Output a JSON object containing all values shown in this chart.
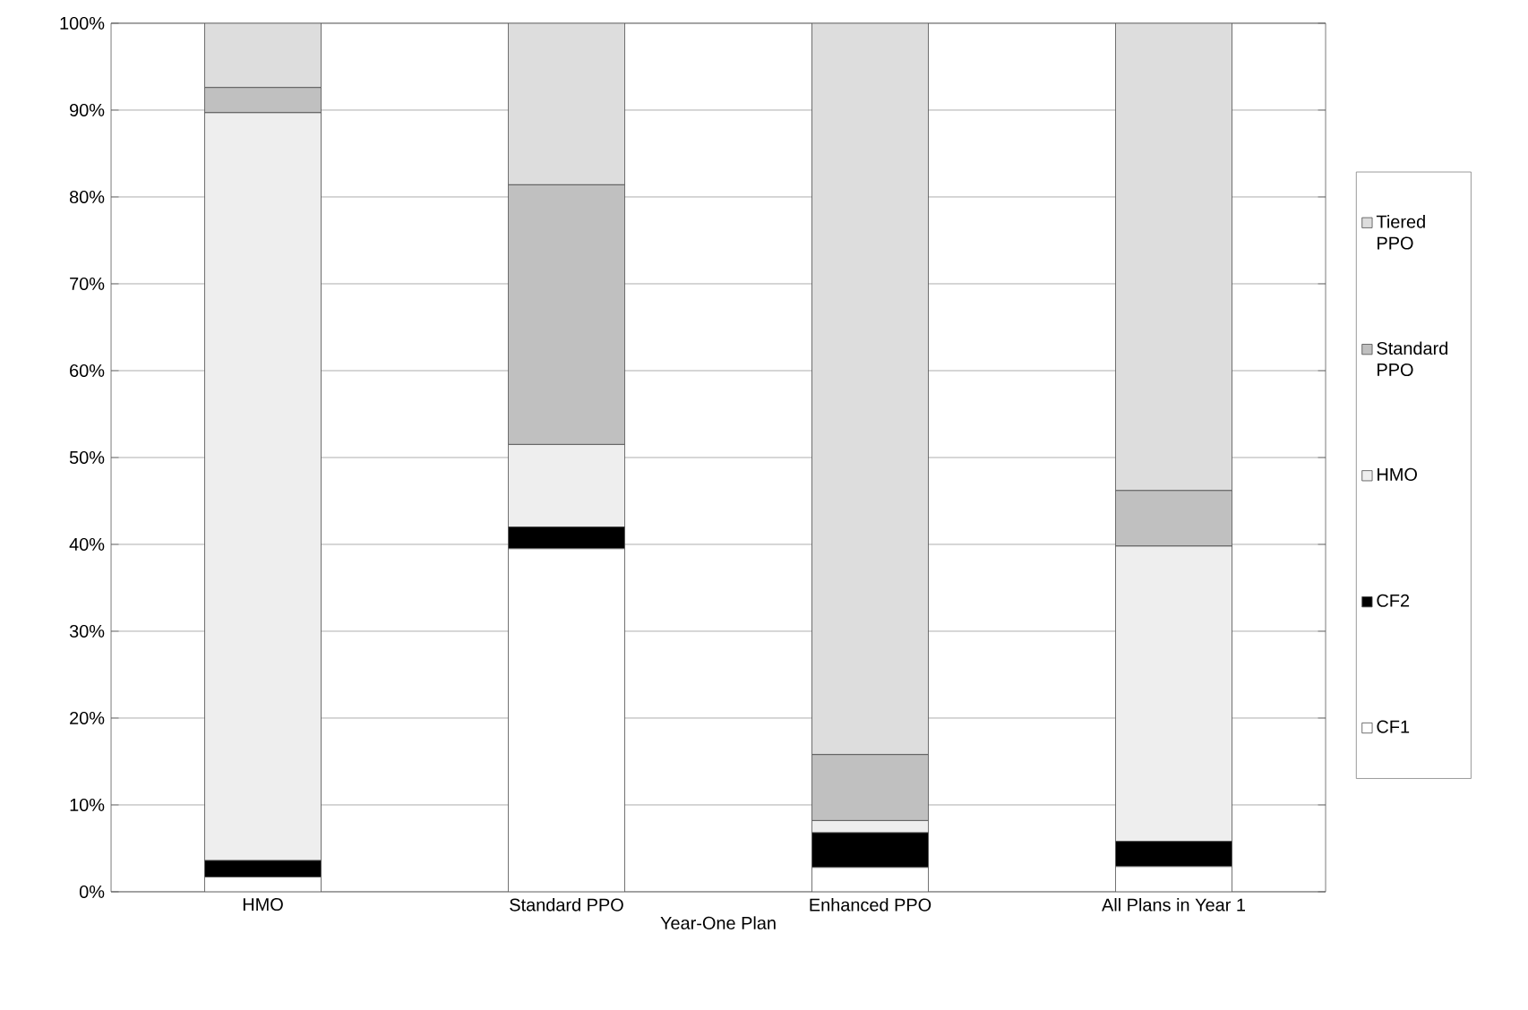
{
  "chart_data": {
    "type": "bar",
    "stacked": true,
    "xlabel": "Year-One Plan",
    "categories": [
      "HMO",
      "Standard PPO",
      "Enhanced PPO",
      "All Plans in Year 1"
    ],
    "series": [
      {
        "name": "CF1",
        "color": "#ffffff",
        "values": [
          1.7,
          39.5,
          2.8,
          2.9
        ]
      },
      {
        "name": "CF2",
        "color": "#000000",
        "values": [
          1.9,
          2.5,
          4.0,
          2.9
        ]
      },
      {
        "name": "HMO",
        "color": "#eeeeee",
        "values": [
          86.1,
          9.5,
          1.4,
          34.0
        ]
      },
      {
        "name": "Standard PPO",
        "color": "#c0c0c0",
        "values": [
          2.9,
          29.9,
          7.6,
          6.4
        ]
      },
      {
        "name": "Tiered PPO",
        "color": "#dddddd",
        "values": [
          7.4,
          18.6,
          84.2,
          53.8
        ]
      }
    ],
    "ylim": [
      0,
      100
    ],
    "yticks": [
      {
        "value": 0,
        "label": "0%"
      },
      {
        "value": 10,
        "label": "10%"
      },
      {
        "value": 20,
        "label": "20%"
      },
      {
        "value": 30,
        "label": "30%"
      },
      {
        "value": 40,
        "label": "40%"
      },
      {
        "value": 50,
        "label": "50%"
      },
      {
        "value": 60,
        "label": "60%"
      },
      {
        "value": 70,
        "label": "70%"
      },
      {
        "value": 80,
        "label": "80%"
      },
      {
        "value": 90,
        "label": "90%"
      },
      {
        "value": 100,
        "label": "100%"
      }
    ],
    "grid": "y",
    "legend": "right"
  }
}
